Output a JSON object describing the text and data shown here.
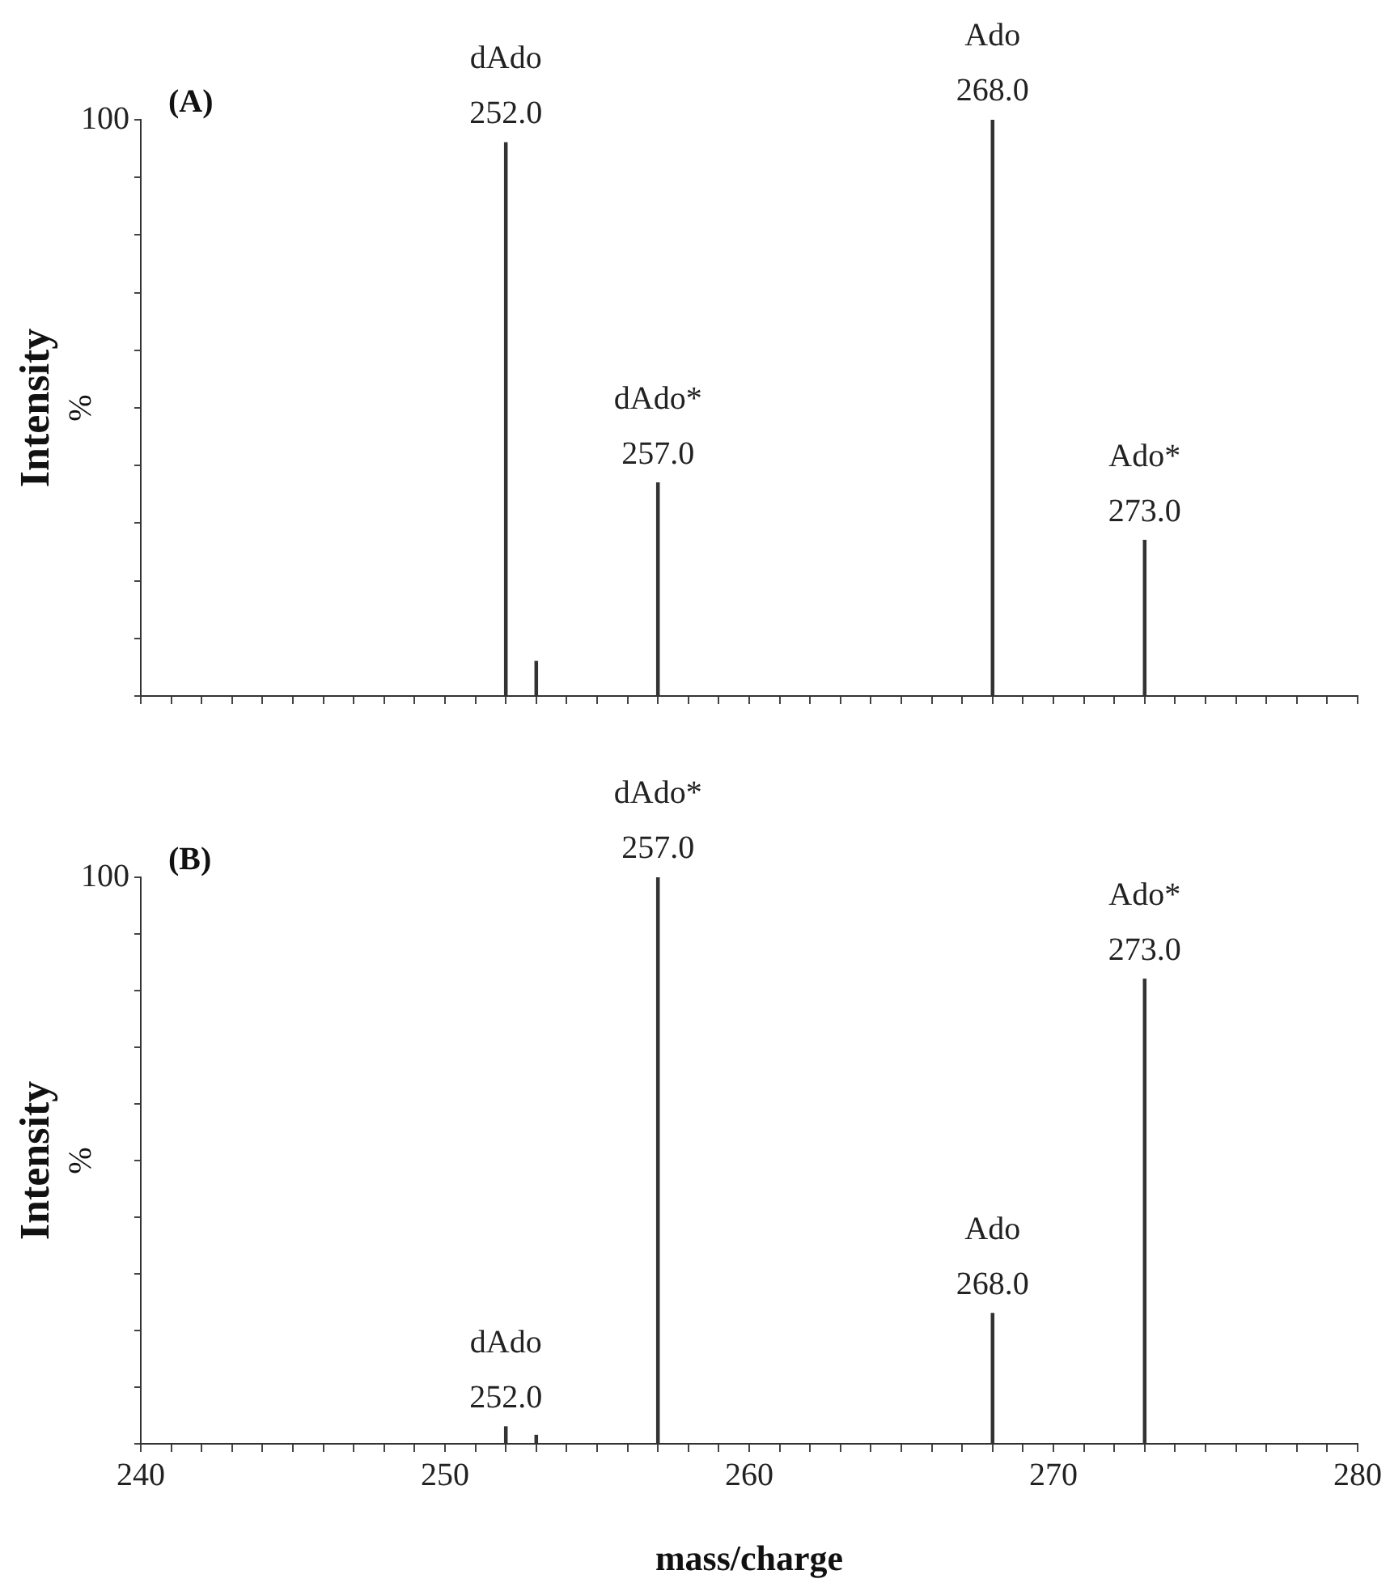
{
  "chart_data": [
    {
      "type": "bar",
      "title": "(A)",
      "ylabel": "Intensity %",
      "color": "#333333",
      "x": [
        252,
        253,
        257,
        268,
        273
      ],
      "values": [
        96,
        6,
        37,
        100,
        27
      ],
      "xlim": [
        240,
        280
      ],
      "xticks": [
        {
          "value": 240,
          "label": null
        },
        {
          "value": 241,
          "label": null
        },
        {
          "value": 242,
          "label": null
        },
        {
          "value": 243,
          "label": null
        },
        {
          "value": 244,
          "label": null
        },
        {
          "value": 245,
          "label": null
        },
        {
          "value": 246,
          "label": null
        },
        {
          "value": 247,
          "label": null
        },
        {
          "value": 248,
          "label": null
        },
        {
          "value": 249,
          "label": null
        },
        {
          "value": 250,
          "label": null
        },
        {
          "value": 251,
          "label": null
        },
        {
          "value": 252,
          "label": null
        },
        {
          "value": 253,
          "label": null
        },
        {
          "value": 254,
          "label": null
        },
        {
          "value": 255,
          "label": null
        },
        {
          "value": 256,
          "label": null
        },
        {
          "value": 257,
          "label": null
        },
        {
          "value": 258,
          "label": null
        },
        {
          "value": 259,
          "label": null
        },
        {
          "value": 260,
          "label": null
        },
        {
          "value": 261,
          "label": null
        },
        {
          "value": 262,
          "label": null
        },
        {
          "value": 263,
          "label": null
        },
        {
          "value": 264,
          "label": null
        },
        {
          "value": 265,
          "label": null
        },
        {
          "value": 266,
          "label": null
        },
        {
          "value": 267,
          "label": null
        },
        {
          "value": 268,
          "label": null
        },
        {
          "value": 269,
          "label": null
        },
        {
          "value": 270,
          "label": null
        },
        {
          "value": 271,
          "label": null
        },
        {
          "value": 272,
          "label": null
        },
        {
          "value": 273,
          "label": null
        },
        {
          "value": 274,
          "label": null
        },
        {
          "value": 275,
          "label": null
        },
        {
          "value": 276,
          "label": null
        },
        {
          "value": 277,
          "label": null
        },
        {
          "value": 278,
          "label": null
        },
        {
          "value": 279,
          "label": null
        },
        {
          "value": 280,
          "label": null
        }
      ],
      "ylim": [
        0,
        100
      ],
      "yticks": [
        {
          "value": 0,
          "label": null
        },
        {
          "value": 10,
          "label": null
        },
        {
          "value": 20,
          "label": null
        },
        {
          "value": 30,
          "label": null
        },
        {
          "value": 40,
          "label": null
        },
        {
          "value": 50,
          "label": null
        },
        {
          "value": 60,
          "label": null
        },
        {
          "value": 70,
          "label": null
        },
        {
          "value": 80,
          "label": null
        },
        {
          "value": 90,
          "label": null
        },
        100
      ],
      "tick_labels": "y",
      "grid": false,
      "legend": false,
      "annotations": [
        {
          "text": "dAdo",
          "x": 252,
          "y": 96
        },
        {
          "text": "252.0",
          "x": 252,
          "y": 96
        },
        {
          "text": "dAdo*",
          "x": 257,
          "y": 37
        },
        {
          "text": "257.0",
          "x": 257,
          "y": 37
        },
        {
          "text": "Ado",
          "x": 268,
          "y": 100
        },
        {
          "text": "268.0",
          "x": 268,
          "y": 100
        },
        {
          "text": "Ado*",
          "x": 273,
          "y": 27
        },
        {
          "text": "273.0",
          "x": 273,
          "y": 27
        }
      ]
    },
    {
      "type": "bar",
      "title": "(B)",
      "ylabel": "Intensity %",
      "xlabel": "mass/charge",
      "color": "#333333",
      "x": [
        252,
        253,
        257,
        268,
        273
      ],
      "values": [
        3,
        1.5,
        100,
        23,
        82
      ],
      "xlim": [
        240,
        280
      ],
      "xticks": [
        240,
        {
          "value": 241,
          "label": null
        },
        {
          "value": 242,
          "label": null
        },
        {
          "value": 243,
          "label": null
        },
        {
          "value": 244,
          "label": null
        },
        {
          "value": 245,
          "label": null
        },
        {
          "value": 246,
          "label": null
        },
        {
          "value": 247,
          "label": null
        },
        {
          "value": 248,
          "label": null
        },
        {
          "value": 249,
          "label": null
        },
        250,
        {
          "value": 251,
          "label": null
        },
        {
          "value": 252,
          "label": null
        },
        {
          "value": 253,
          "label": null
        },
        {
          "value": 254,
          "label": null
        },
        {
          "value": 255,
          "label": null
        },
        {
          "value": 256,
          "label": null
        },
        {
          "value": 257,
          "label": null
        },
        {
          "value": 258,
          "label": null
        },
        {
          "value": 259,
          "label": null
        },
        260,
        {
          "value": 261,
          "label": null
        },
        {
          "value": 262,
          "label": null
        },
        {
          "value": 263,
          "label": null
        },
        {
          "value": 264,
          "label": null
        },
        {
          "value": 265,
          "label": null
        },
        {
          "value": 266,
          "label": null
        },
        {
          "value": 267,
          "label": null
        },
        {
          "value": 268,
          "label": null
        },
        {
          "value": 269,
          "label": null
        },
        270,
        {
          "value": 271,
          "label": null
        },
        {
          "value": 272,
          "label": null
        },
        {
          "value": 273,
          "label": null
        },
        {
          "value": 274,
          "label": null
        },
        {
          "value": 275,
          "label": null
        },
        {
          "value": 276,
          "label": null
        },
        {
          "value": 277,
          "label": null
        },
        {
          "value": 278,
          "label": null
        },
        {
          "value": 279,
          "label": null
        },
        280
      ],
      "ylim": [
        0,
        100
      ],
      "yticks": [
        {
          "value": 0,
          "label": null
        },
        {
          "value": 10,
          "label": null
        },
        {
          "value": 20,
          "label": null
        },
        {
          "value": 30,
          "label": null
        },
        {
          "value": 40,
          "label": null
        },
        {
          "value": 50,
          "label": null
        },
        {
          "value": 60,
          "label": null
        },
        {
          "value": 70,
          "label": null
        },
        {
          "value": 80,
          "label": null
        },
        {
          "value": 90,
          "label": null
        },
        100
      ],
      "grid": false,
      "legend": false,
      "annotations": [
        {
          "text": "dAdo",
          "x": 252,
          "y": 3
        },
        {
          "text": "252.0",
          "x": 252,
          "y": 3
        },
        {
          "text": "dAdo*",
          "x": 257,
          "y": 100
        },
        {
          "text": "257.0",
          "x": 257,
          "y": 100
        },
        {
          "text": "Ado",
          "x": 268,
          "y": 23
        },
        {
          "text": "268.0",
          "x": 268,
          "y": 23
        },
        {
          "text": "Ado*",
          "x": 273,
          "y": 82
        },
        {
          "text": "273.0",
          "x": 273,
          "y": 82
        }
      ]
    }
  ]
}
